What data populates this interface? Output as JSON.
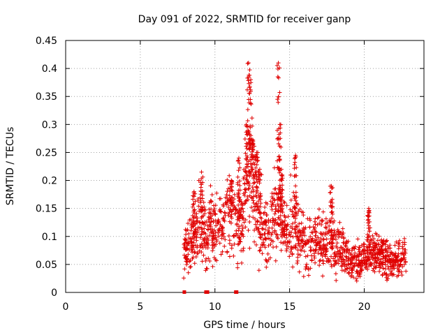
{
  "chart_data": {
    "type": "scatter",
    "title": "Day 091 of 2022, SRMTID for receiver ganp",
    "xlabel": "GPS time / hours",
    "ylabel": "SRMTID / TECUs",
    "xlim": [
      0,
      24
    ],
    "ylim": [
      0,
      0.45
    ],
    "xticks": [
      0,
      5,
      10,
      15,
      20
    ],
    "xtick_labels": [
      "0",
      "5",
      "10",
      "15",
      "20"
    ],
    "yticks": [
      0,
      0.05,
      0.1,
      0.15,
      0.2,
      0.25,
      0.3,
      0.35,
      0.4,
      0.45
    ],
    "ytick_labels": [
      "0",
      "0.05",
      "0.1",
      "0.15",
      "0.2",
      "0.25",
      "0.3",
      "0.35",
      "0.4",
      "0.45"
    ],
    "grid": true,
    "marker": "+",
    "color": "#e00000",
    "profile": [
      [
        7.9,
        0.075
      ],
      [
        8.4,
        0.085
      ],
      [
        8.8,
        0.11
      ],
      [
        9.0,
        0.12
      ],
      [
        9.4,
        0.1
      ],
      [
        9.7,
        0.12
      ],
      [
        10.0,
        0.125
      ],
      [
        10.4,
        0.11
      ],
      [
        10.8,
        0.14
      ],
      [
        11.1,
        0.13
      ],
      [
        11.5,
        0.1
      ],
      [
        11.9,
        0.14
      ],
      [
        12.2,
        0.2
      ],
      [
        12.5,
        0.2
      ],
      [
        12.8,
        0.15
      ],
      [
        13.2,
        0.12
      ],
      [
        13.6,
        0.11
      ],
      [
        14.0,
        0.13
      ],
      [
        14.3,
        0.14
      ],
      [
        14.7,
        0.11
      ],
      [
        15.1,
        0.12
      ],
      [
        15.5,
        0.12
      ],
      [
        15.9,
        0.1
      ],
      [
        16.4,
        0.08
      ],
      [
        16.9,
        0.09
      ],
      [
        17.4,
        0.085
      ],
      [
        17.9,
        0.09
      ],
      [
        18.3,
        0.075
      ],
      [
        18.8,
        0.06
      ],
      [
        19.3,
        0.055
      ],
      [
        19.8,
        0.055
      ],
      [
        20.3,
        0.07
      ],
      [
        20.8,
        0.07
      ],
      [
        21.3,
        0.06
      ],
      [
        21.8,
        0.055
      ],
      [
        22.3,
        0.06
      ],
      [
        22.8,
        0.065
      ]
    ],
    "bursts": [
      {
        "x": 12.1,
        "y": 0.3
      },
      {
        "x": 12.25,
        "y": 0.41
      },
      {
        "x": 12.4,
        "y": 0.38
      },
      {
        "x": 12.55,
        "y": 0.27
      },
      {
        "x": 12.8,
        "y": 0.25
      },
      {
        "x": 14.25,
        "y": 0.41
      },
      {
        "x": 14.35,
        "y": 0.3
      },
      {
        "x": 14.45,
        "y": 0.22
      },
      {
        "x": 15.4,
        "y": 0.245
      },
      {
        "x": 9.1,
        "y": 0.215
      },
      {
        "x": 11.6,
        "y": 0.24
      },
      {
        "x": 11.1,
        "y": 0.2
      },
      {
        "x": 17.8,
        "y": 0.19
      },
      {
        "x": 20.3,
        "y": 0.15
      },
      {
        "x": 13.0,
        "y": 0.22
      },
      {
        "x": 8.6,
        "y": 0.18
      }
    ],
    "zero_markers_x": [
      7.95,
      9.4,
      9.5,
      11.4,
      11.45
    ]
  }
}
